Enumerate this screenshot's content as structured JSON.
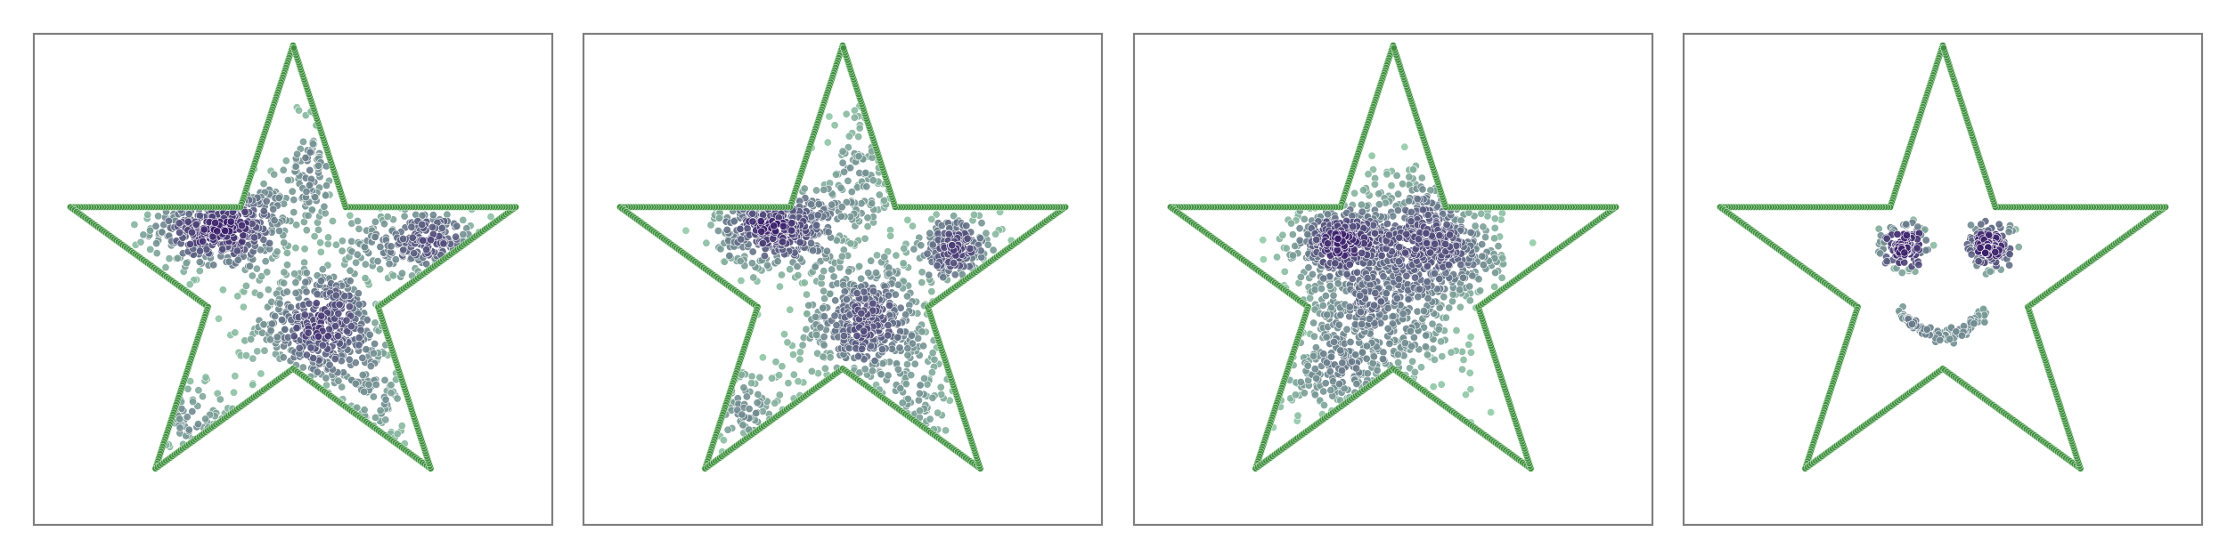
{
  "chart_data": [
    {
      "type": "scatter",
      "title": "",
      "xlabel": "",
      "ylabel": "",
      "xlim": [
        -1.05,
        1.05
      ],
      "ylim": [
        -1.05,
        1.05
      ],
      "grid": false,
      "ticks": false,
      "outline": {
        "color": "#3f8f3f",
        "shape": "five-point-star",
        "outer_radius": 1.0,
        "inner_radius": 0.382
      },
      "point_color_low": "#93d0a8",
      "point_color_high": "#3b1f6b",
      "clusters": [
        {
          "cx": -0.3,
          "cy": 0.23,
          "sx": 0.15,
          "sy": 0.1,
          "n": 520
        },
        {
          "cx": 0.12,
          "cy": -0.2,
          "sx": 0.14,
          "sy": 0.13,
          "n": 480
        },
        {
          "cx": 0.55,
          "cy": 0.16,
          "sx": 0.15,
          "sy": 0.07,
          "n": 260
        },
        {
          "cx": -0.4,
          "cy": -0.62,
          "sx": 0.14,
          "sy": 0.08,
          "n": 140
        },
        {
          "cx": 0.08,
          "cy": 0.45,
          "sx": 0.05,
          "sy": 0.18,
          "n": 110
        },
        {
          "cx": 0.35,
          "cy": -0.55,
          "sx": 0.08,
          "sy": 0.18,
          "n": 120
        }
      ]
    },
    {
      "type": "scatter",
      "title": "",
      "xlabel": "",
      "ylabel": "",
      "xlim": [
        -1.05,
        1.05
      ],
      "ylim": [
        -1.05,
        1.05
      ],
      "grid": false,
      "ticks": false,
      "outline": {
        "color": "#3f8f3f",
        "shape": "five-point-star",
        "outer_radius": 1.0,
        "inner_radius": 0.382
      },
      "point_color_low": "#93d0a8",
      "point_color_high": "#3b1f6b",
      "clusters": [
        {
          "cx": -0.28,
          "cy": 0.23,
          "sx": 0.13,
          "sy": 0.09,
          "n": 460
        },
        {
          "cx": 0.1,
          "cy": -0.18,
          "sx": 0.15,
          "sy": 0.14,
          "n": 460
        },
        {
          "cx": 0.48,
          "cy": 0.13,
          "sx": 0.1,
          "sy": 0.07,
          "n": 220
        },
        {
          "cx": -0.4,
          "cy": -0.6,
          "sx": 0.16,
          "sy": 0.1,
          "n": 180
        },
        {
          "cx": 0.08,
          "cy": 0.42,
          "sx": 0.08,
          "sy": 0.15,
          "n": 130
        },
        {
          "cx": 0.3,
          "cy": -0.52,
          "sx": 0.1,
          "sy": 0.16,
          "n": 120
        }
      ]
    },
    {
      "type": "scatter",
      "title": "",
      "xlabel": "",
      "ylabel": "",
      "xlim": [
        -1.05,
        1.05
      ],
      "ylim": [
        -1.05,
        1.05
      ],
      "grid": false,
      "ticks": false,
      "outline": {
        "color": "#3f8f3f",
        "shape": "five-point-star",
        "outer_radius": 1.0,
        "inner_radius": 0.382
      },
      "point_color_low": "#93d0a8",
      "point_color_high": "#3b1f6b",
      "clusters": [
        {
          "cx": -0.22,
          "cy": 0.16,
          "sx": 0.1,
          "sy": 0.08,
          "n": 360
        },
        {
          "cx": 0.2,
          "cy": 0.12,
          "sx": 0.13,
          "sy": 0.1,
          "n": 340
        },
        {
          "cx": -0.05,
          "cy": -0.12,
          "sx": 0.2,
          "sy": 0.18,
          "n": 560
        },
        {
          "cx": -0.25,
          "cy": -0.4,
          "sx": 0.15,
          "sy": 0.1,
          "n": 180
        },
        {
          "cx": 0.1,
          "cy": 0.3,
          "sx": 0.12,
          "sy": 0.12,
          "n": 160
        }
      ]
    },
    {
      "type": "scatter",
      "title": "",
      "xlabel": "",
      "ylabel": "",
      "xlim": [
        -1.05,
        1.05
      ],
      "ylim": [
        -1.05,
        1.05
      ],
      "grid": false,
      "ticks": false,
      "outline": {
        "color": "#3f8f3f",
        "shape": "five-point-star",
        "outer_radius": 1.0,
        "inner_radius": 0.382
      },
      "point_color_low": "#93d0a8",
      "point_color_high": "#3b1f6b",
      "clusters": [
        {
          "cx": -0.16,
          "cy": 0.14,
          "sx": 0.035,
          "sy": 0.035,
          "n": 130
        },
        {
          "cx": 0.21,
          "cy": 0.14,
          "sx": 0.035,
          "sy": 0.035,
          "n": 130
        }
      ],
      "rings": [
        {
          "cx": -0.16,
          "cy": 0.14,
          "r": 0.1,
          "n": 40
        },
        {
          "cx": 0.21,
          "cy": 0.14,
          "r": 0.1,
          "n": 40
        }
      ],
      "smile": {
        "cx": 0.0,
        "cy": -0.14,
        "rx": 0.18,
        "depth": 0.1,
        "n": 110
      }
    }
  ]
}
